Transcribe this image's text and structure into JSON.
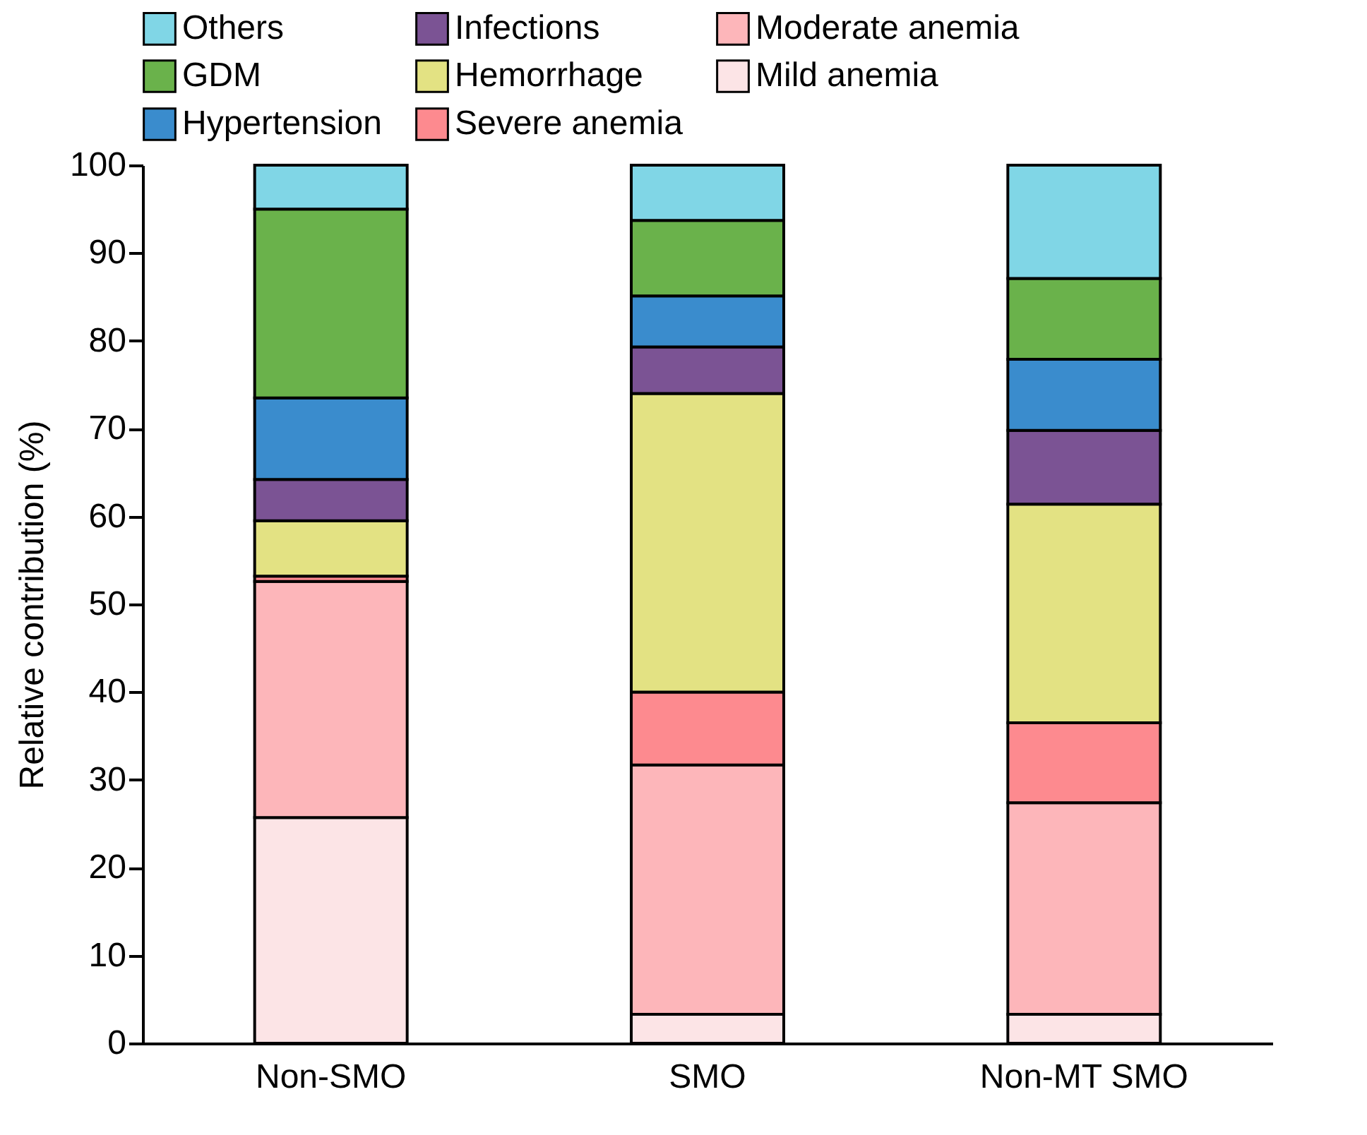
{
  "chart_data": {
    "type": "bar",
    "stacked": true,
    "ylabel": "Relative contribution (%)",
    "categories": [
      "Non-SMO",
      "SMO",
      "Non-MT SMO"
    ],
    "series": [
      {
        "name": "Mild anemia",
        "color": "#fce4e6",
        "values": [
          25.7,
          3.3,
          3.3
        ]
      },
      {
        "name": "Moderate anemia",
        "color": "#fdb6ba",
        "values": [
          26.9,
          28.4,
          24.1
        ]
      },
      {
        "name": "Severe anemia",
        "color": "#fd8a8f",
        "values": [
          0.6,
          8.3,
          9.1
        ]
      },
      {
        "name": "Hemorrhage",
        "color": "#e3e283",
        "values": [
          6.3,
          34.0,
          24.9
        ]
      },
      {
        "name": "Infections",
        "color": "#7b5394",
        "values": [
          4.7,
          5.3,
          8.4
        ]
      },
      {
        "name": "Hypertension",
        "color": "#3a8ccd",
        "values": [
          9.3,
          5.8,
          8.1
        ]
      },
      {
        "name": "GDM",
        "color": "#6ab24b",
        "values": [
          21.5,
          8.6,
          9.2
        ]
      },
      {
        "name": "Others",
        "color": "#80d6e6",
        "values": [
          5.0,
          6.3,
          12.9
        ]
      }
    ],
    "ylim": [
      0,
      100
    ],
    "yticks": [
      0,
      10,
      20,
      30,
      40,
      50,
      60,
      70,
      80,
      90,
      100
    ],
    "grid": false,
    "legend": "top"
  }
}
